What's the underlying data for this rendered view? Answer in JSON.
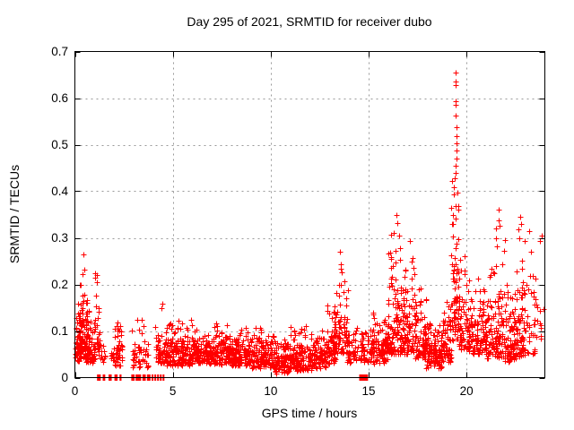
{
  "chart_data": {
    "type": "scatter",
    "title": "Day 295 of 2021, SRMTID for receiver dubo",
    "xlabel": "GPS time / hours",
    "ylabel": "SRMTID / TECUs",
    "xlim": [
      0,
      24
    ],
    "ylim": [
      0,
      0.7
    ],
    "xticks": [
      0,
      5,
      10,
      15,
      20
    ],
    "yticks": [
      0,
      0.1,
      0.2,
      0.3,
      0.4,
      0.5,
      0.6,
      0.7
    ],
    "grid": true,
    "legend": null,
    "marker": {
      "shape": "plus",
      "size": 7,
      "color": "#ff0000"
    },
    "grid_color": "#999999",
    "border_color": "#000000",
    "background": "#ffffff",
    "random_seed": 295,
    "clusters_format": [
      "t_start",
      "t_end",
      "n_points",
      "y_min",
      "y_max",
      "skew_k"
    ],
    "clusters": [
      [
        0.02,
        0.35,
        70,
        0.035,
        0.165,
        2.0
      ],
      [
        0.25,
        0.65,
        80,
        0.04,
        0.23,
        2.6
      ],
      [
        0.55,
        1.05,
        70,
        0.03,
        0.155,
        2.2
      ],
      [
        1.0,
        1.3,
        30,
        0.04,
        0.235,
        2.6
      ],
      [
        1.3,
        1.55,
        10,
        0.03,
        0.08,
        1.5
      ],
      [
        1.85,
        2.45,
        55,
        0.025,
        0.145,
        2.1
      ],
      [
        2.9,
        3.75,
        50,
        0.02,
        0.135,
        2.1
      ],
      [
        4.1,
        4.6,
        45,
        0.03,
        0.175,
        2.3
      ],
      [
        4.6,
        6.0,
        170,
        0.025,
        0.135,
        1.9
      ],
      [
        6.0,
        7.5,
        180,
        0.03,
        0.125,
        1.9
      ],
      [
        7.5,
        9.0,
        180,
        0.025,
        0.12,
        1.9
      ],
      [
        9.0,
        10.2,
        140,
        0.02,
        0.115,
        1.9
      ],
      [
        10.2,
        11.0,
        100,
        0.008,
        0.095,
        1.7
      ],
      [
        11.0,
        12.1,
        130,
        0.015,
        0.125,
        2.0
      ],
      [
        12.1,
        12.8,
        85,
        0.02,
        0.115,
        1.9
      ],
      [
        12.8,
        13.35,
        70,
        0.03,
        0.18,
        2.2
      ],
      [
        13.2,
        14.0,
        75,
        0.05,
        0.245,
        2.4
      ],
      [
        13.9,
        14.45,
        45,
        0.03,
        0.155,
        2.0
      ],
      [
        14.5,
        15.15,
        55,
        0.03,
        0.125,
        1.8
      ],
      [
        15.15,
        15.95,
        95,
        0.03,
        0.145,
        1.9
      ],
      [
        15.95,
        16.7,
        110,
        0.05,
        0.33,
        2.5
      ],
      [
        16.7,
        17.35,
        95,
        0.05,
        0.3,
        2.4
      ],
      [
        17.35,
        17.95,
        90,
        0.04,
        0.225,
        2.2
      ],
      [
        17.95,
        18.75,
        115,
        0.02,
        0.135,
        1.8
      ],
      [
        18.75,
        19.2,
        60,
        0.03,
        0.185,
        2.0
      ],
      [
        19.2,
        19.6,
        75,
        0.08,
        0.5,
        2.1
      ],
      [
        19.6,
        20.15,
        70,
        0.06,
        0.3,
        2.3
      ],
      [
        20.15,
        21.05,
        110,
        0.05,
        0.225,
        2.2
      ],
      [
        21.05,
        21.95,
        115,
        0.04,
        0.33,
        2.4
      ],
      [
        21.95,
        22.45,
        70,
        0.03,
        0.21,
        2.0
      ],
      [
        22.45,
        23.0,
        80,
        0.04,
        0.33,
        2.4
      ],
      [
        23.0,
        23.5,
        30,
        0.05,
        0.3,
        2.2
      ],
      [
        23.5,
        23.95,
        15,
        0.08,
        0.32,
        2.2
      ]
    ],
    "outliers": [
      [
        0.42,
        0.265
      ],
      [
        0.47,
        0.232
      ],
      [
        0.38,
        0.222
      ],
      [
        1.05,
        0.225
      ],
      [
        1.1,
        0.205
      ],
      [
        13.54,
        0.27
      ],
      [
        13.56,
        0.243
      ],
      [
        13.59,
        0.234
      ],
      [
        13.61,
        0.226
      ],
      [
        16.42,
        0.35
      ],
      [
        16.47,
        0.332
      ],
      [
        16.55,
        0.305
      ],
      [
        19.42,
        0.655
      ],
      [
        19.42,
        0.636
      ],
      [
        19.43,
        0.628
      ],
      [
        19.44,
        0.594
      ],
      [
        19.45,
        0.585
      ],
      [
        19.46,
        0.563
      ],
      [
        19.47,
        0.537
      ],
      [
        19.48,
        0.519
      ],
      [
        19.47,
        0.502
      ],
      [
        19.49,
        0.488
      ],
      [
        19.5,
        0.47
      ],
      [
        19.46,
        0.455
      ],
      [
        19.44,
        0.44
      ],
      [
        21.62,
        0.36
      ],
      [
        21.66,
        0.338
      ],
      [
        21.7,
        0.325
      ],
      [
        22.72,
        0.345
      ],
      [
        22.78,
        0.33
      ],
      [
        22.65,
        0.318
      ],
      [
        23.2,
        0.315
      ],
      [
        23.85,
        0.305
      ]
    ],
    "zero_value_runs": [
      [
        1.13,
        1.32
      ],
      [
        1.42,
        1.55
      ],
      [
        1.72,
        1.88
      ],
      [
        2.02,
        2.18
      ],
      [
        2.28,
        2.38
      ],
      [
        2.88,
        3.05
      ],
      [
        3.1,
        3.38
      ],
      [
        3.45,
        3.62
      ],
      [
        3.68,
        3.86
      ],
      [
        3.92,
        4.0
      ],
      [
        4.06,
        4.12
      ],
      [
        4.2,
        4.26
      ],
      [
        4.34,
        4.4
      ],
      [
        4.48,
        4.56
      ],
      [
        14.52,
        14.97
      ]
    ]
  }
}
